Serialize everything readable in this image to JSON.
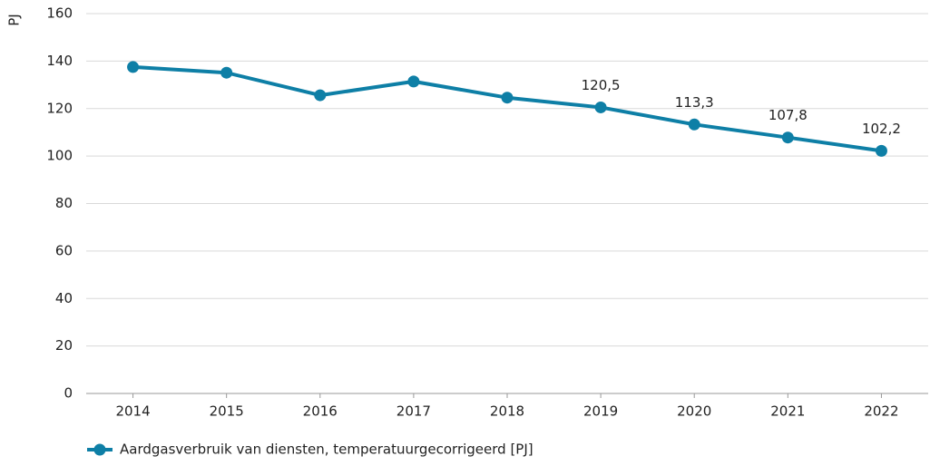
{
  "chart_data": {
    "type": "line",
    "y_label": "PJ",
    "categories": [
      "2014",
      "2015",
      "2016",
      "2017",
      "2018",
      "2019",
      "2020",
      "2021",
      "2022"
    ],
    "series": [
      {
        "name": "Aardgasverbruik van diensten, temperatuurgecorrigeerd [PJ]",
        "color": "#0e7fa6",
        "values": [
          137.5,
          135.1,
          125.6,
          131.4,
          124.6,
          120.5,
          113.3,
          107.8,
          102.2
        ],
        "value_labels": [
          null,
          null,
          null,
          null,
          null,
          "120,5",
          "113,3",
          "107,8",
          "102,2"
        ]
      }
    ],
    "ylim": [
      0,
      160
    ],
    "yticks": [
      0,
      20,
      40,
      60,
      80,
      100,
      120,
      140,
      160
    ],
    "grid": true,
    "legend": "bottom-left"
  }
}
